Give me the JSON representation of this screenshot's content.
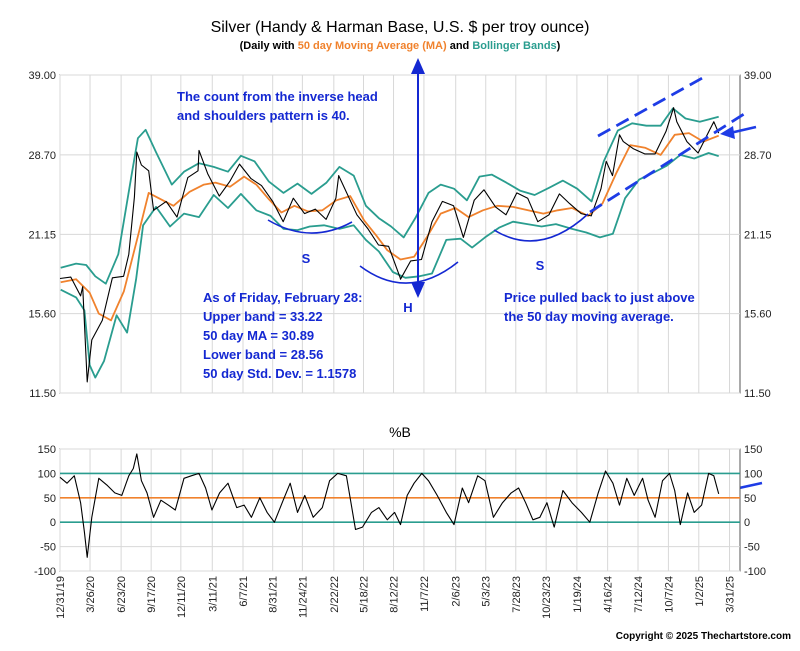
{
  "chart_data": [
    {
      "type": "line",
      "title": "Silver (Handy & Harman Base, U.S. $ per troy ounce)",
      "subtitle": {
        "prefix": "(Daily with ",
        "ma": "50 day Moving Average (MA)",
        "mid": " and ",
        "bb": "Bollinger Bands",
        "suffix": ")"
      },
      "y_scale": "log",
      "ylim": [
        11.5,
        39.0
      ],
      "y_ticks": [
        "39.00",
        "28.70",
        "21.15",
        "15.60",
        "11.50"
      ],
      "y_tick_values": [
        39.0,
        28.7,
        21.15,
        15.6,
        11.5
      ],
      "x_range": [
        "2019-12-31",
        "2025-04-30"
      ],
      "x_ticks": [
        "12/31/19",
        "3/26/20",
        "6/23/20",
        "9/17/20",
        "12/11/20",
        "3/11/21",
        "6/7/21",
        "8/31/21",
        "11/24/21",
        "2/22/22",
        "5/18/22",
        "8/12/22",
        "11/7/22",
        "2/6/23",
        "5/3/23",
        "7/28/23",
        "10/23/23",
        "1/19/24",
        "4/16/24",
        "7/12/24",
        "10/7/24",
        "1/2/25",
        "3/31/25"
      ],
      "x_tick_dates": [
        "2019-12-31",
        "2020-03-26",
        "2020-06-23",
        "2020-09-17",
        "2020-12-11",
        "2021-03-11",
        "2021-06-07",
        "2021-08-31",
        "2021-11-24",
        "2022-02-22",
        "2022-05-18",
        "2022-08-12",
        "2022-11-07",
        "2023-02-06",
        "2023-05-03",
        "2023-07-28",
        "2023-10-23",
        "2024-01-19",
        "2024-04-16",
        "2024-07-12",
        "2024-10-07",
        "2025-01-02",
        "2025-03-31"
      ],
      "grid": true,
      "colors": {
        "price": "#000000",
        "ma": "#F0822D",
        "bands": "#2A9D8F",
        "annotation": "#1428D2",
        "trend": "#1E3CE6"
      },
      "series": [
        {
          "name": "50 day Moving Average (MA)",
          "role": "ma",
          "x": [
            "2020-01-02",
            "2020-02-15",
            "2020-03-25",
            "2020-04-20",
            "2020-05-25",
            "2020-07-01",
            "2020-08-10",
            "2020-09-10",
            "2020-10-15",
            "2020-11-20",
            "2021-01-05",
            "2021-02-15",
            "2021-03-20",
            "2021-05-01",
            "2021-06-10",
            "2021-07-15",
            "2021-08-20",
            "2021-09-25",
            "2021-11-01",
            "2021-12-10",
            "2022-01-20",
            "2022-03-01",
            "2022-04-10",
            "2022-05-20",
            "2022-06-25",
            "2022-07-25",
            "2022-09-01",
            "2022-10-10",
            "2022-11-15",
            "2022-12-25",
            "2023-02-05",
            "2023-03-15",
            "2023-04-25",
            "2023-06-05",
            "2023-07-20",
            "2023-09-01",
            "2023-10-15",
            "2023-11-25",
            "2024-01-05",
            "2024-02-20",
            "2024-04-01",
            "2024-05-10",
            "2024-06-20",
            "2024-08-01",
            "2024-09-15",
            "2024-10-25",
            "2024-12-05",
            "2025-01-15",
            "2025-02-28"
          ],
          "values": [
            17.6,
            17.8,
            16.9,
            15.6,
            15.2,
            17.0,
            21.0,
            24.8,
            24.2,
            23.6,
            24.9,
            25.6,
            25.8,
            25.4,
            26.4,
            25.6,
            24.2,
            23.0,
            23.6,
            23.1,
            23.2,
            24.1,
            24.5,
            22.3,
            21.0,
            19.9,
            19.2,
            19.4,
            20.9,
            22.9,
            23.4,
            22.6,
            23.2,
            23.6,
            23.5,
            23.2,
            22.9,
            23.2,
            23.4,
            22.7,
            23.8,
            26.7,
            29.8,
            29.5,
            28.7,
            31.0,
            31.2,
            30.2,
            30.89
          ]
        },
        {
          "name": "Upper Bollinger Band",
          "role": "band",
          "x": [
            "2020-01-02",
            "2020-02-15",
            "2020-03-15",
            "2020-04-10",
            "2020-05-10",
            "2020-06-15",
            "2020-07-25",
            "2020-08-10",
            "2020-09-01",
            "2020-10-01",
            "2020-11-15",
            "2020-12-20",
            "2021-02-01",
            "2021-03-15",
            "2021-04-25",
            "2021-06-01",
            "2021-07-10",
            "2021-08-20",
            "2021-10-01",
            "2021-11-10",
            "2021-12-20",
            "2022-02-01",
            "2022-03-10",
            "2022-04-20",
            "2022-05-25",
            "2022-07-01",
            "2022-08-05",
            "2022-09-10",
            "2022-10-15",
            "2022-11-20",
            "2022-12-25",
            "2023-02-01",
            "2023-03-10",
            "2023-04-15",
            "2023-05-20",
            "2023-07-01",
            "2023-08-10",
            "2023-09-20",
            "2023-11-01",
            "2023-12-10",
            "2024-01-20",
            "2024-03-01",
            "2024-04-05",
            "2024-05-15",
            "2024-06-25",
            "2024-08-05",
            "2024-09-15",
            "2024-10-20",
            "2024-11-25",
            "2025-01-05",
            "2025-02-28"
          ],
          "values": [
            18.6,
            18.9,
            18.8,
            18.0,
            17.5,
            19.6,
            27.0,
            30.6,
            31.6,
            29.0,
            25.6,
            26.9,
            27.8,
            27.4,
            26.9,
            28.6,
            28.0,
            25.9,
            24.8,
            25.7,
            24.7,
            25.8,
            27.4,
            26.5,
            23.6,
            22.5,
            21.8,
            20.9,
            22.6,
            24.8,
            25.6,
            25.2,
            24.1,
            26.4,
            26.6,
            25.8,
            25.0,
            24.6,
            25.3,
            26.0,
            25.2,
            24.0,
            28.0,
            31.5,
            32.4,
            32.1,
            32.1,
            34.3,
            33.0,
            32.6,
            33.22
          ]
        },
        {
          "name": "Lower Bollinger Band",
          "role": "band",
          "x": [
            "2020-01-02",
            "2020-02-15",
            "2020-03-10",
            "2020-03-25",
            "2020-04-10",
            "2020-05-05",
            "2020-06-10",
            "2020-07-10",
            "2020-08-05",
            "2020-08-25",
            "2020-10-01",
            "2020-11-10",
            "2020-12-20",
            "2021-02-01",
            "2021-03-15",
            "2021-04-25",
            "2021-06-01",
            "2021-07-15",
            "2021-08-25",
            "2021-10-01",
            "2021-11-10",
            "2021-12-15",
            "2022-01-25",
            "2022-03-10",
            "2022-04-20",
            "2022-05-25",
            "2022-07-01",
            "2022-08-10",
            "2022-09-15",
            "2022-10-25",
            "2022-11-30",
            "2023-01-10",
            "2023-02-20",
            "2023-03-25",
            "2023-05-01",
            "2023-06-10",
            "2023-07-20",
            "2023-08-30",
            "2023-10-10",
            "2023-11-20",
            "2024-01-05",
            "2024-02-15",
            "2024-03-25",
            "2024-05-01",
            "2024-06-05",
            "2024-07-15",
            "2024-08-25",
            "2024-10-01",
            "2024-11-10",
            "2024-12-20",
            "2025-01-30",
            "2025-02-28"
          ],
          "values": [
            17.1,
            16.6,
            15.8,
            12.8,
            12.2,
            13.0,
            15.5,
            14.5,
            17.8,
            21.9,
            23.5,
            21.8,
            22.9,
            22.6,
            24.6,
            23.4,
            24.7,
            23.2,
            22.7,
            21.6,
            21.5,
            21.8,
            21.9,
            21.6,
            21.9,
            20.7,
            19.8,
            18.3,
            17.9,
            18.0,
            18.2,
            20.7,
            20.8,
            20.1,
            20.9,
            21.7,
            22.2,
            22.0,
            21.8,
            22.0,
            21.6,
            21.3,
            20.9,
            21.2,
            24.3,
            26.1,
            26.8,
            27.5,
            28.7,
            28.3,
            28.9,
            28.56
          ]
        },
        {
          "name": "Silver daily price",
          "role": "price",
          "x": [
            "2019-12-31",
            "2020-01-31",
            "2020-02-28",
            "2020-03-05",
            "2020-03-18",
            "2020-03-31",
            "2020-04-30",
            "2020-05-29",
            "2020-06-30",
            "2020-07-15",
            "2020-07-31",
            "2020-08-07",
            "2020-08-20",
            "2020-09-10",
            "2020-09-24",
            "2020-10-30",
            "2020-11-30",
            "2020-12-31",
            "2021-01-29",
            "2021-02-01",
            "2021-02-26",
            "2021-03-31",
            "2021-04-30",
            "2021-05-28",
            "2021-06-30",
            "2021-07-30",
            "2021-08-31",
            "2021-09-30",
            "2021-10-29",
            "2021-11-30",
            "2021-12-31",
            "2022-01-31",
            "2022-02-28",
            "2022-03-08",
            "2022-04-29",
            "2022-05-31",
            "2022-06-30",
            "2022-07-29",
            "2022-08-31",
            "2022-09-01",
            "2022-09-30",
            "2022-10-31",
            "2022-11-30",
            "2022-12-30",
            "2023-01-31",
            "2023-02-28",
            "2023-03-31",
            "2023-04-28",
            "2023-05-31",
            "2023-06-30",
            "2023-07-31",
            "2023-08-31",
            "2023-09-29",
            "2023-10-31",
            "2023-11-30",
            "2023-12-29",
            "2024-01-31",
            "2024-02-29",
            "2024-03-28",
            "2024-04-12",
            "2024-04-30",
            "2024-05-20",
            "2024-05-31",
            "2024-06-28",
            "2024-07-31",
            "2024-08-30",
            "2024-09-30",
            "2024-10-22",
            "2024-10-31",
            "2024-11-29",
            "2024-12-31",
            "2025-01-31",
            "2025-02-14",
            "2025-02-28"
          ],
          "values": [
            17.85,
            17.95,
            16.7,
            17.3,
            12.0,
            14.1,
            15.2,
            17.9,
            18.0,
            19.6,
            24.4,
            29.0,
            27.6,
            27.0,
            23.2,
            24.0,
            22.6,
            26.3,
            27.0,
            29.2,
            26.7,
            24.5,
            25.9,
            27.7,
            26.2,
            25.5,
            24.0,
            22.2,
            24.3,
            22.9,
            23.3,
            22.4,
            24.3,
            26.5,
            22.8,
            21.6,
            20.3,
            20.2,
            17.9,
            17.8,
            19.1,
            19.2,
            22.2,
            24.0,
            23.6,
            20.9,
            24.1,
            25.1,
            23.5,
            22.8,
            24.8,
            24.3,
            22.2,
            22.8,
            24.7,
            23.8,
            22.9,
            22.7,
            25.2,
            28.0,
            26.5,
            31.0,
            30.2,
            29.4,
            28.8,
            28.8,
            31.4,
            34.4,
            32.6,
            30.2,
            28.9,
            31.4,
            32.6,
            31.2
          ]
        }
      ],
      "annotations": {
        "count_line1": "The count from the inverse head",
        "count_line2": "and shoulders pattern is 40.",
        "shoulder_left": "S",
        "head": "H",
        "shoulder_right": "S",
        "stats_line1": "As of Friday, February 28:",
        "stats_line2": "Upper band = 33.22",
        "stats_line3": "50 day MA = 30.89",
        "stats_line4": "Lower band = 28.56",
        "stats_line5": "50 day Std. Dev. = 1.1578",
        "pullback_line1": "Price pulled back to just above",
        "pullback_line2": "the 50 day moving average."
      }
    },
    {
      "type": "line",
      "title": "%B",
      "ylim": [
        -100,
        150
      ],
      "y_ticks": [
        "150",
        "100",
        "50",
        "0",
        "-50",
        "-100"
      ],
      "y_tick_values": [
        150,
        100,
        50,
        0,
        -50,
        -100
      ],
      "reference_lines": [
        100,
        50,
        0
      ],
      "colors": {
        "line": "#000000",
        "ref_band": "#2A9D8F",
        "ref_mid": "#F0822D"
      },
      "series": [
        {
          "name": "%B",
          "x": [
            "2019-12-31",
            "2020-01-20",
            "2020-02-10",
            "2020-02-28",
            "2020-03-10",
            "2020-03-18",
            "2020-03-31",
            "2020-04-20",
            "2020-05-15",
            "2020-06-05",
            "2020-06-25",
            "2020-07-15",
            "2020-07-28",
            "2020-08-07",
            "2020-08-20",
            "2020-09-05",
            "2020-09-24",
            "2020-10-15",
            "2020-11-05",
            "2020-11-25",
            "2020-12-20",
            "2021-01-10",
            "2021-02-01",
            "2021-02-20",
            "2021-03-10",
            "2021-04-01",
            "2021-04-25",
            "2021-05-20",
            "2021-06-10",
            "2021-07-01",
            "2021-07-25",
            "2021-08-15",
            "2021-09-05",
            "2021-09-30",
            "2021-10-20",
            "2021-11-10",
            "2021-12-01",
            "2021-12-25",
            "2022-01-20",
            "2022-02-10",
            "2022-03-05",
            "2022-03-30",
            "2022-04-25",
            "2022-05-15",
            "2022-06-10",
            "2022-07-01",
            "2022-07-25",
            "2022-08-15",
            "2022-09-01",
            "2022-09-20",
            "2022-10-10",
            "2022-11-01",
            "2022-11-20",
            "2022-12-15",
            "2023-01-10",
            "2023-02-01",
            "2023-02-25",
            "2023-03-15",
            "2023-04-10",
            "2023-05-01",
            "2023-05-25",
            "2023-06-20",
            "2023-07-15",
            "2023-08-05",
            "2023-08-25",
            "2023-09-15",
            "2023-10-05",
            "2023-10-25",
            "2023-11-15",
            "2023-12-10",
            "2024-01-05",
            "2024-02-01",
            "2024-02-25",
            "2024-03-20",
            "2024-04-10",
            "2024-05-01",
            "2024-05-20",
            "2024-06-10",
            "2024-07-01",
            "2024-07-25",
            "2024-08-10",
            "2024-08-30",
            "2024-09-20",
            "2024-10-10",
            "2024-10-25",
            "2024-11-10",
            "2024-12-01",
            "2024-12-20",
            "2025-01-10",
            "2025-01-30",
            "2025-02-14",
            "2025-02-28"
          ],
          "values": [
            92,
            80,
            95,
            40,
            -20,
            -72,
            10,
            90,
            75,
            60,
            55,
            95,
            110,
            140,
            85,
            60,
            10,
            45,
            35,
            25,
            90,
            95,
            100,
            70,
            25,
            60,
            80,
            30,
            35,
            10,
            50,
            20,
            0,
            45,
            80,
            20,
            55,
            10,
            30,
            85,
            100,
            95,
            -15,
            -10,
            20,
            30,
            5,
            20,
            -5,
            55,
            80,
            100,
            85,
            55,
            20,
            -5,
            70,
            40,
            95,
            85,
            10,
            40,
            60,
            70,
            40,
            5,
            10,
            40,
            -10,
            65,
            40,
            20,
            0,
            60,
            105,
            80,
            35,
            90,
            55,
            90,
            45,
            10,
            85,
            100,
            65,
            -5,
            60,
            20,
            35,
            100,
            95,
            58
          ]
        }
      ]
    }
  ],
  "copyright": "Copyright © 2025 Thechartstore.com"
}
